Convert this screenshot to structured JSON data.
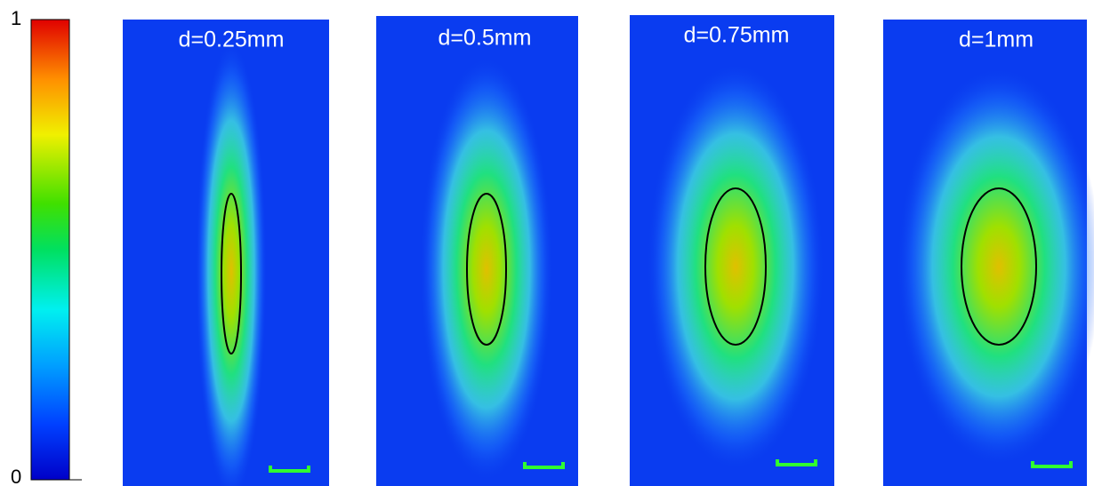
{
  "colorbar": {
    "max_label": "1",
    "min_label": "0"
  },
  "panels": [
    {
      "title": "d=0.25mm"
    },
    {
      "title": "d=0.5mm"
    },
    {
      "title": "d=0.75mm"
    },
    {
      "title": "d=1mm"
    }
  ]
}
